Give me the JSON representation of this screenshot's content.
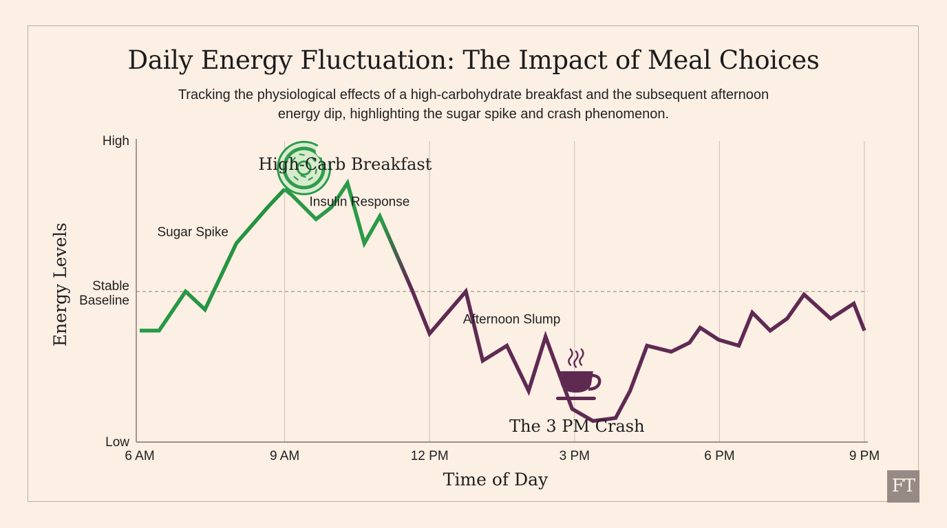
{
  "header": {
    "title": "Daily Energy Fluctuation: The Impact of Meal Choices",
    "subtitle": "Tracking the physiological effects of a high-carbohydrate breakfast and the subsequent afternoon energy dip, highlighting the sugar spike and crash phenomenon."
  },
  "logo": {
    "text": "FT"
  },
  "colors": {
    "background": "#fcefe4",
    "spike_green": "#2a9a48",
    "crash_purple": "#5e2a52",
    "grid": "#cbc0b8",
    "baseline": "#8a8079"
  },
  "chart_data": {
    "type": "line",
    "xlabel": "Time of Day",
    "ylabel": "Energy Levels",
    "xlim": [
      6,
      21
    ],
    "ylim": [
      0,
      100
    ],
    "x_ticks": [
      {
        "value": 6,
        "label": "6 AM"
      },
      {
        "value": 9,
        "label": "9 AM"
      },
      {
        "value": 12,
        "label": "12 PM"
      },
      {
        "value": 15,
        "label": "3 PM"
      },
      {
        "value": 18,
        "label": "6 PM"
      },
      {
        "value": 21,
        "label": "9 PM"
      }
    ],
    "y_labels": [
      {
        "value": 100,
        "label": "High"
      },
      {
        "value": 50,
        "label": "Stable Baseline"
      },
      {
        "value": 0,
        "label": "Low"
      }
    ],
    "baseline": 50,
    "grid": "vertical",
    "series": [
      {
        "x": [
          6.0,
          6.4,
          6.95,
          7.35,
          8.0,
          8.65,
          9.0
        ],
        "values": [
          37,
          37,
          50,
          44,
          66,
          78,
          84
        ]
      },
      {
        "x": [
          9.0,
          9.15,
          9.65,
          9.97,
          10.3,
          10.65,
          10.97,
          11.35,
          11.65,
          12.0,
          12.75,
          13.1,
          13.6,
          14.05,
          14.4,
          14.95,
          15.38,
          15.85,
          16.15,
          16.5,
          17.0,
          17.38,
          17.6,
          17.98,
          18.4,
          18.68,
          19.05,
          19.4,
          19.75,
          20.3,
          20.78,
          21.0
        ],
        "values": [
          84,
          82,
          74,
          78,
          86,
          66,
          75,
          61,
          50,
          36,
          50,
          27,
          32,
          17,
          35,
          11,
          7,
          8,
          17,
          32,
          30,
          33,
          38,
          34,
          32,
          43,
          37,
          41,
          49,
          41,
          46,
          37
        ]
      }
    ],
    "annotations": [
      {
        "text": "Sugar Spike",
        "x": 7.1,
        "y": 70
      },
      {
        "text": "High-Carb Breakfast",
        "x": 10.25,
        "y": 92
      },
      {
        "text": "Insulin Response",
        "x": 10.55,
        "y": 80
      },
      {
        "text": "Afternoon Slump",
        "x": 13.7,
        "y": 41
      },
      {
        "text": "The 3 PM Crash",
        "x": 15.05,
        "y": 5
      }
    ],
    "icons": [
      {
        "name": "donut-icon",
        "x": 9.4,
        "y": 91
      },
      {
        "name": "coffee-cup-icon",
        "x": 15.03,
        "y": 21
      }
    ]
  }
}
